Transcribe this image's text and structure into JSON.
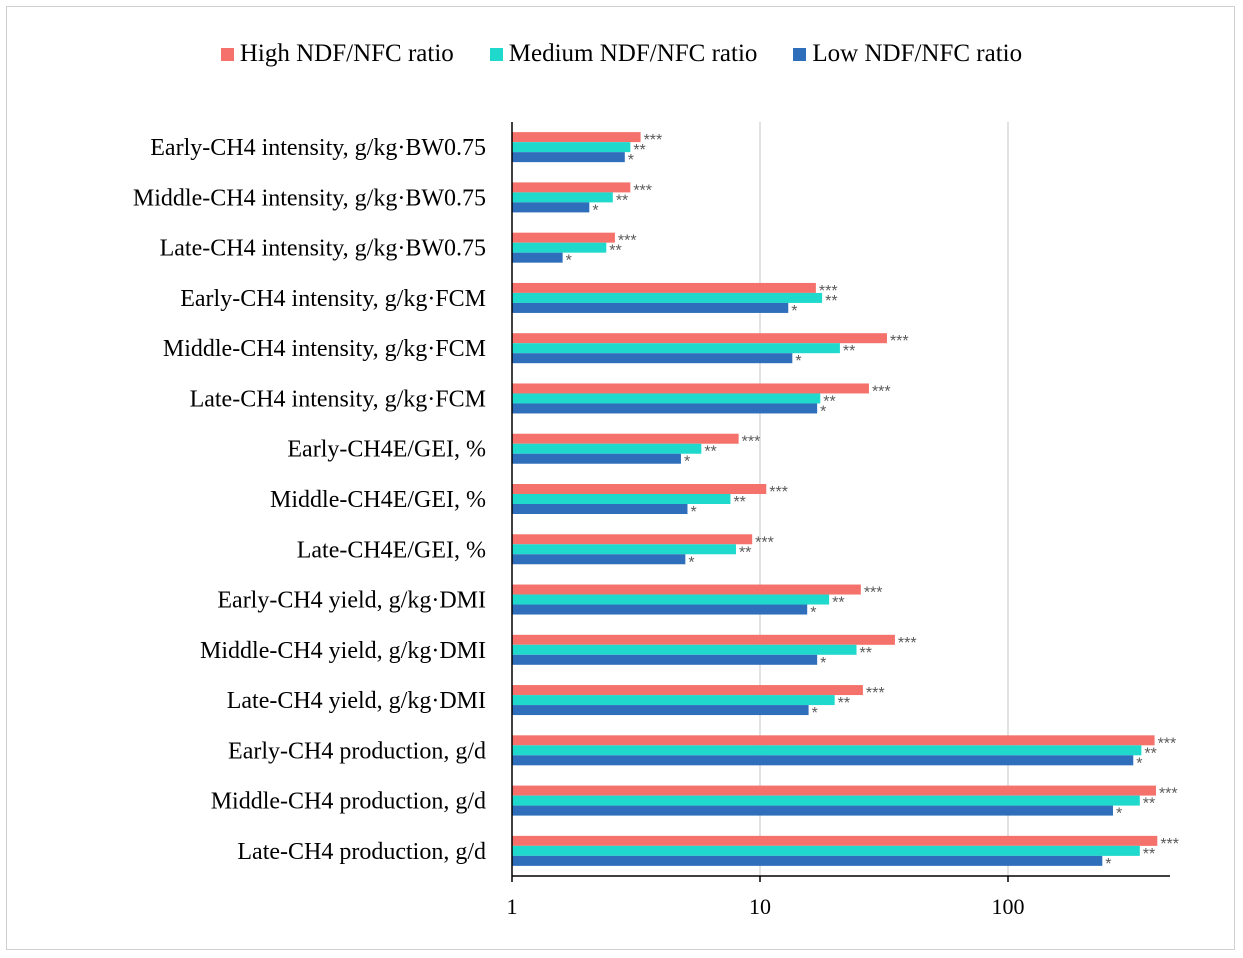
{
  "chart_data": {
    "type": "bar",
    "orientation": "horizontal",
    "x_scale": "log",
    "xlim": [
      1,
      450
    ],
    "x_ticks": [
      1,
      10,
      100
    ],
    "x_tick_labels": [
      "1",
      "10",
      "100"
    ],
    "grid": "vertical",
    "legend_position": "top",
    "colors": {
      "high": "#F4726B",
      "medium": "#1ED9CC",
      "low": "#2F6EBA"
    },
    "categories": [
      "Early-CH4 intensity, g/kg·BW0.75",
      "Middle-CH4 intensity, g/kg·BW0.75",
      "Late-CH4 intensity, g/kg·BW0.75",
      "Early-CH4 intensity, g/kg·FCM",
      "Middle-CH4 intensity, g/kg·FCM",
      "Late-CH4 intensity, g/kg·FCM",
      "Early-CH4E/GEI, %",
      "Middle-CH4E/GEI, %",
      "Late-CH4E/GEI, %",
      "Early-CH4 yield, g/kg·DMI",
      "Middle-CH4 yield, g/kg·DMI",
      "Late-CH4 yield, g/kg·DMI",
      "Early-CH4 production, g/d",
      "Middle-CH4 production, g/d",
      "Late-CH4 production, g/d"
    ],
    "series": [
      {
        "name": "High NDF/NFC ratio",
        "color": "#F4726B",
        "significance": "***",
        "values": [
          3.3,
          3.0,
          2.6,
          16.8,
          32.5,
          27.5,
          8.2,
          10.6,
          9.3,
          25.5,
          35.0,
          26.0,
          390,
          395,
          400
        ]
      },
      {
        "name": "Medium NDF/NFC ratio",
        "color": "#1ED9CC",
        "significance": "**",
        "values": [
          3.0,
          2.55,
          2.4,
          17.8,
          21.0,
          17.5,
          5.8,
          7.6,
          8.0,
          19.0,
          24.5,
          20.0,
          345,
          340,
          340
        ]
      },
      {
        "name": "Low NDF/NFC ratio",
        "color": "#2F6EBA",
        "significance": "*",
        "values": [
          2.85,
          2.05,
          1.6,
          13.0,
          13.5,
          17.0,
          4.8,
          5.1,
          5.0,
          15.5,
          17.0,
          15.7,
          320,
          265,
          240
        ]
      }
    ]
  }
}
